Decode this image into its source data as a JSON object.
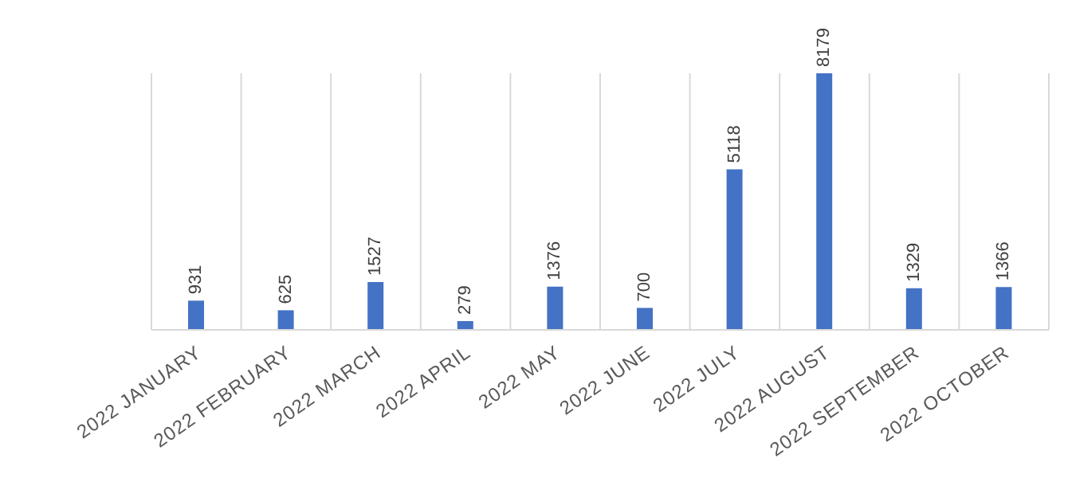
{
  "chart_data": {
    "type": "bar",
    "categories": [
      "2022 JANUARY",
      "2022 FEBRUARY",
      "2022 MARCH",
      "2022 APRIL",
      "2022 MAY",
      "2022 JUNE",
      "2022 JULY",
      "2022 AUGUST",
      "2022 SEPTEMBER",
      "2022 OCTOBER"
    ],
    "values": [
      931,
      625,
      1527,
      279,
      1376,
      700,
      5118,
      8179,
      1329,
      1366
    ],
    "color": "#4472c4",
    "data_labels": true,
    "grid": "x"
  }
}
